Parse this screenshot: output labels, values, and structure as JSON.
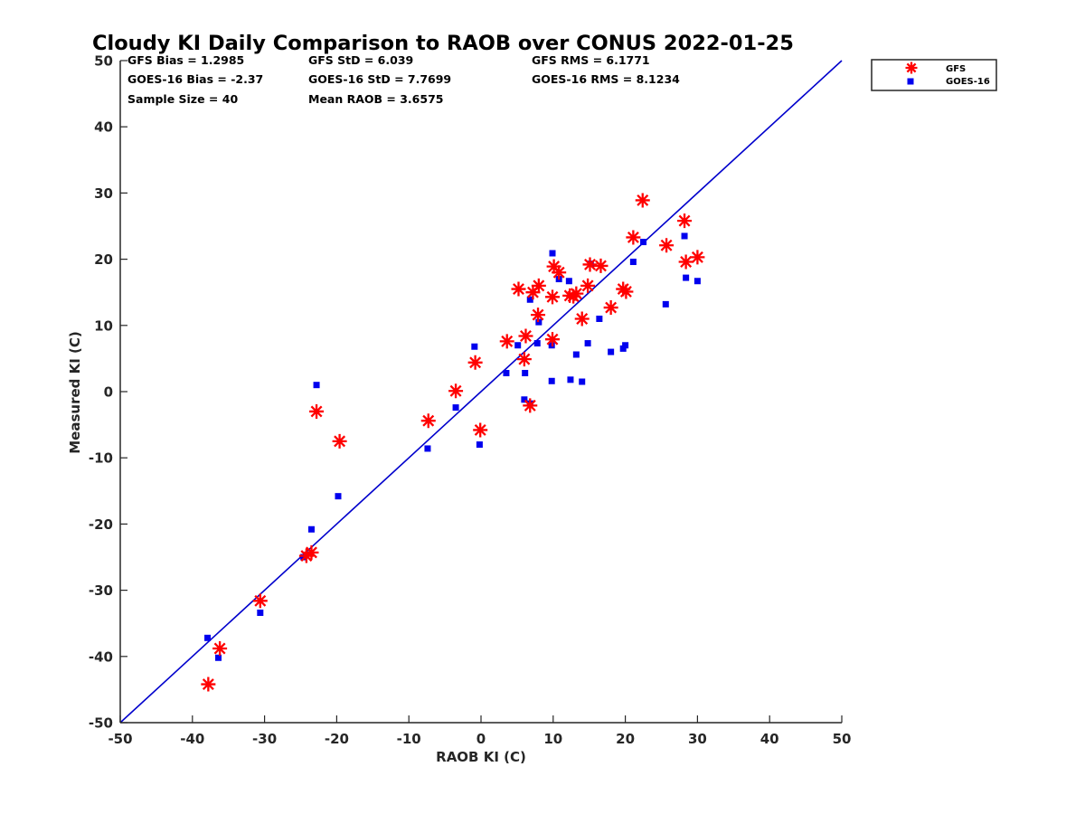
{
  "chart_data": {
    "type": "scatter",
    "title": "Cloudy KI Daily Comparison to RAOB over CONUS 2022-01-25",
    "xlabel": "RAOB KI (C)",
    "ylabel": "Measured KI (C)",
    "xlim": [
      -50,
      50
    ],
    "ylim": [
      -50,
      50
    ],
    "xticks": [
      "-50",
      "-40",
      "-30",
      "-20",
      "-10",
      "0",
      "10",
      "20",
      "30",
      "40",
      "50"
    ],
    "yticks": [
      "-50",
      "-40",
      "-30",
      "-20",
      "-10",
      "0",
      "10",
      "20",
      "30",
      "40",
      "50"
    ],
    "grid": false,
    "legend_position": "top-right-outside",
    "reference_line": {
      "from": [
        -50,
        -50
      ],
      "to": [
        50,
        50
      ],
      "color": "#0000cc"
    },
    "stats": [
      [
        "GFS Bias = 1.2985",
        "GFS StD = 6.039",
        "GFS RMS = 6.1771"
      ],
      [
        "GOES-16 Bias = -2.37",
        "GOES-16 StD = 7.7699",
        "GOES-16 RMS = 8.1234"
      ],
      [
        "Sample Size = 40",
        "Mean RAOB = 3.6575",
        ""
      ]
    ],
    "series": [
      {
        "name": "GFS",
        "marker": "asterisk",
        "color": "#ff0000",
        "points": [
          [
            -37.8,
            -44.2
          ],
          [
            -36.2,
            -38.8
          ],
          [
            -30.6,
            -31.6
          ],
          [
            -24.2,
            -24.8
          ],
          [
            -23.5,
            -24.3
          ],
          [
            -22.8,
            -3.0
          ],
          [
            -19.6,
            -7.5
          ],
          [
            -7.3,
            -4.4
          ],
          [
            -3.5,
            0.1
          ],
          [
            -0.8,
            4.4
          ],
          [
            -0.1,
            -5.8
          ],
          [
            3.6,
            7.6
          ],
          [
            5.2,
            15.5
          ],
          [
            6.0,
            4.9
          ],
          [
            6.2,
            8.4
          ],
          [
            6.8,
            -2.1
          ],
          [
            7.2,
            15.0
          ],
          [
            7.9,
            11.6
          ],
          [
            8.0,
            16.0
          ],
          [
            9.9,
            14.3
          ],
          [
            9.9,
            7.9
          ],
          [
            10.1,
            18.9
          ],
          [
            10.8,
            18.0
          ],
          [
            12.3,
            14.5
          ],
          [
            12.8,
            14.4
          ],
          [
            13.2,
            14.8
          ],
          [
            14.0,
            11.0
          ],
          [
            14.8,
            16.0
          ],
          [
            15.1,
            19.2
          ],
          [
            16.6,
            19.0
          ],
          [
            18.0,
            12.7
          ],
          [
            19.7,
            15.5
          ],
          [
            20.1,
            15.1
          ],
          [
            21.1,
            23.3
          ],
          [
            22.4,
            28.9
          ],
          [
            25.7,
            22.1
          ],
          [
            28.2,
            25.8
          ],
          [
            28.4,
            19.6
          ],
          [
            30.0,
            20.3
          ]
        ]
      },
      {
        "name": "GOES-16",
        "marker": "square",
        "color": "#0000ee",
        "points": [
          [
            -37.9,
            -37.2
          ],
          [
            -36.4,
            -40.2
          ],
          [
            -30.6,
            -33.4
          ],
          [
            -24.6,
            -25.0
          ],
          [
            -23.5,
            -20.8
          ],
          [
            -22.8,
            1.0
          ],
          [
            -19.8,
            -15.8
          ],
          [
            -7.4,
            -8.6
          ],
          [
            -3.5,
            -2.4
          ],
          [
            -0.9,
            6.8
          ],
          [
            -0.2,
            -8.0
          ],
          [
            3.5,
            2.8
          ],
          [
            5.1,
            7.0
          ],
          [
            6.0,
            -1.2
          ],
          [
            6.1,
            2.8
          ],
          [
            6.8,
            -1.8
          ],
          [
            6.8,
            13.9
          ],
          [
            7.8,
            7.3
          ],
          [
            8.0,
            10.5
          ],
          [
            9.8,
            7.0
          ],
          [
            9.8,
            1.6
          ],
          [
            9.9,
            20.9
          ],
          [
            10.8,
            17.0
          ],
          [
            12.2,
            16.7
          ],
          [
            12.4,
            1.8
          ],
          [
            13.2,
            5.6
          ],
          [
            14.0,
            1.5
          ],
          [
            14.8,
            7.3
          ],
          [
            15.2,
            19.3
          ],
          [
            16.4,
            11.0
          ],
          [
            18.0,
            6.0
          ],
          [
            19.7,
            6.5
          ],
          [
            20.0,
            7.0
          ],
          [
            21.1,
            19.6
          ],
          [
            22.5,
            22.6
          ],
          [
            25.6,
            13.2
          ],
          [
            28.2,
            23.5
          ],
          [
            28.4,
            17.2
          ],
          [
            30.0,
            16.7
          ]
        ]
      }
    ]
  }
}
